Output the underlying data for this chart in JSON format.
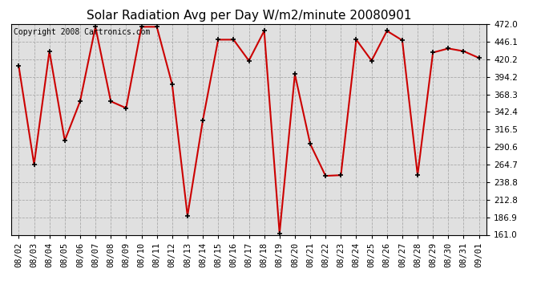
{
  "title": "Solar Radiation Avg per Day W/m2/minute 20080901",
  "copyright": "Copyright 2008 Cartronics.com",
  "dates": [
    "08/02",
    "08/03",
    "08/04",
    "08/05",
    "08/06",
    "08/07",
    "08/08",
    "08/09",
    "08/10",
    "08/11",
    "08/12",
    "08/13",
    "08/14",
    "08/15",
    "08/16",
    "08/17",
    "08/18",
    "08/19",
    "08/20",
    "08/21",
    "08/22",
    "08/23",
    "08/24",
    "08/25",
    "08/26",
    "08/27",
    "08/28",
    "08/29",
    "08/30",
    "08/31",
    "09/01"
  ],
  "values": [
    410.0,
    265.0,
    432.0,
    300.0,
    358.0,
    468.0,
    358.0,
    348.0,
    468.0,
    468.0,
    383.0,
    189.0,
    330.0,
    449.0,
    449.0,
    418.0,
    462.0,
    163.0,
    398.0,
    295.0,
    248.0,
    249.0,
    449.0,
    418.0,
    462.0,
    448.0,
    249.0,
    430.0,
    436.0,
    432.0,
    422.0
  ],
  "ylim_min": 161.0,
  "ylim_max": 472.0,
  "yticks": [
    161.0,
    186.9,
    212.8,
    238.8,
    264.7,
    290.6,
    316.5,
    342.4,
    368.3,
    394.2,
    420.2,
    446.1,
    472.0
  ],
  "line_color": "#cc0000",
  "marker": "+",
  "marker_color": "#000000",
  "bg_color": "#ffffff",
  "plot_bg_color": "#e0e0e0",
  "grid_color": "#aaaaaa",
  "title_fontsize": 11,
  "copyright_fontsize": 7,
  "tick_fontsize": 7.5,
  "fig_width": 6.9,
  "fig_height": 3.75,
  "dpi": 100
}
